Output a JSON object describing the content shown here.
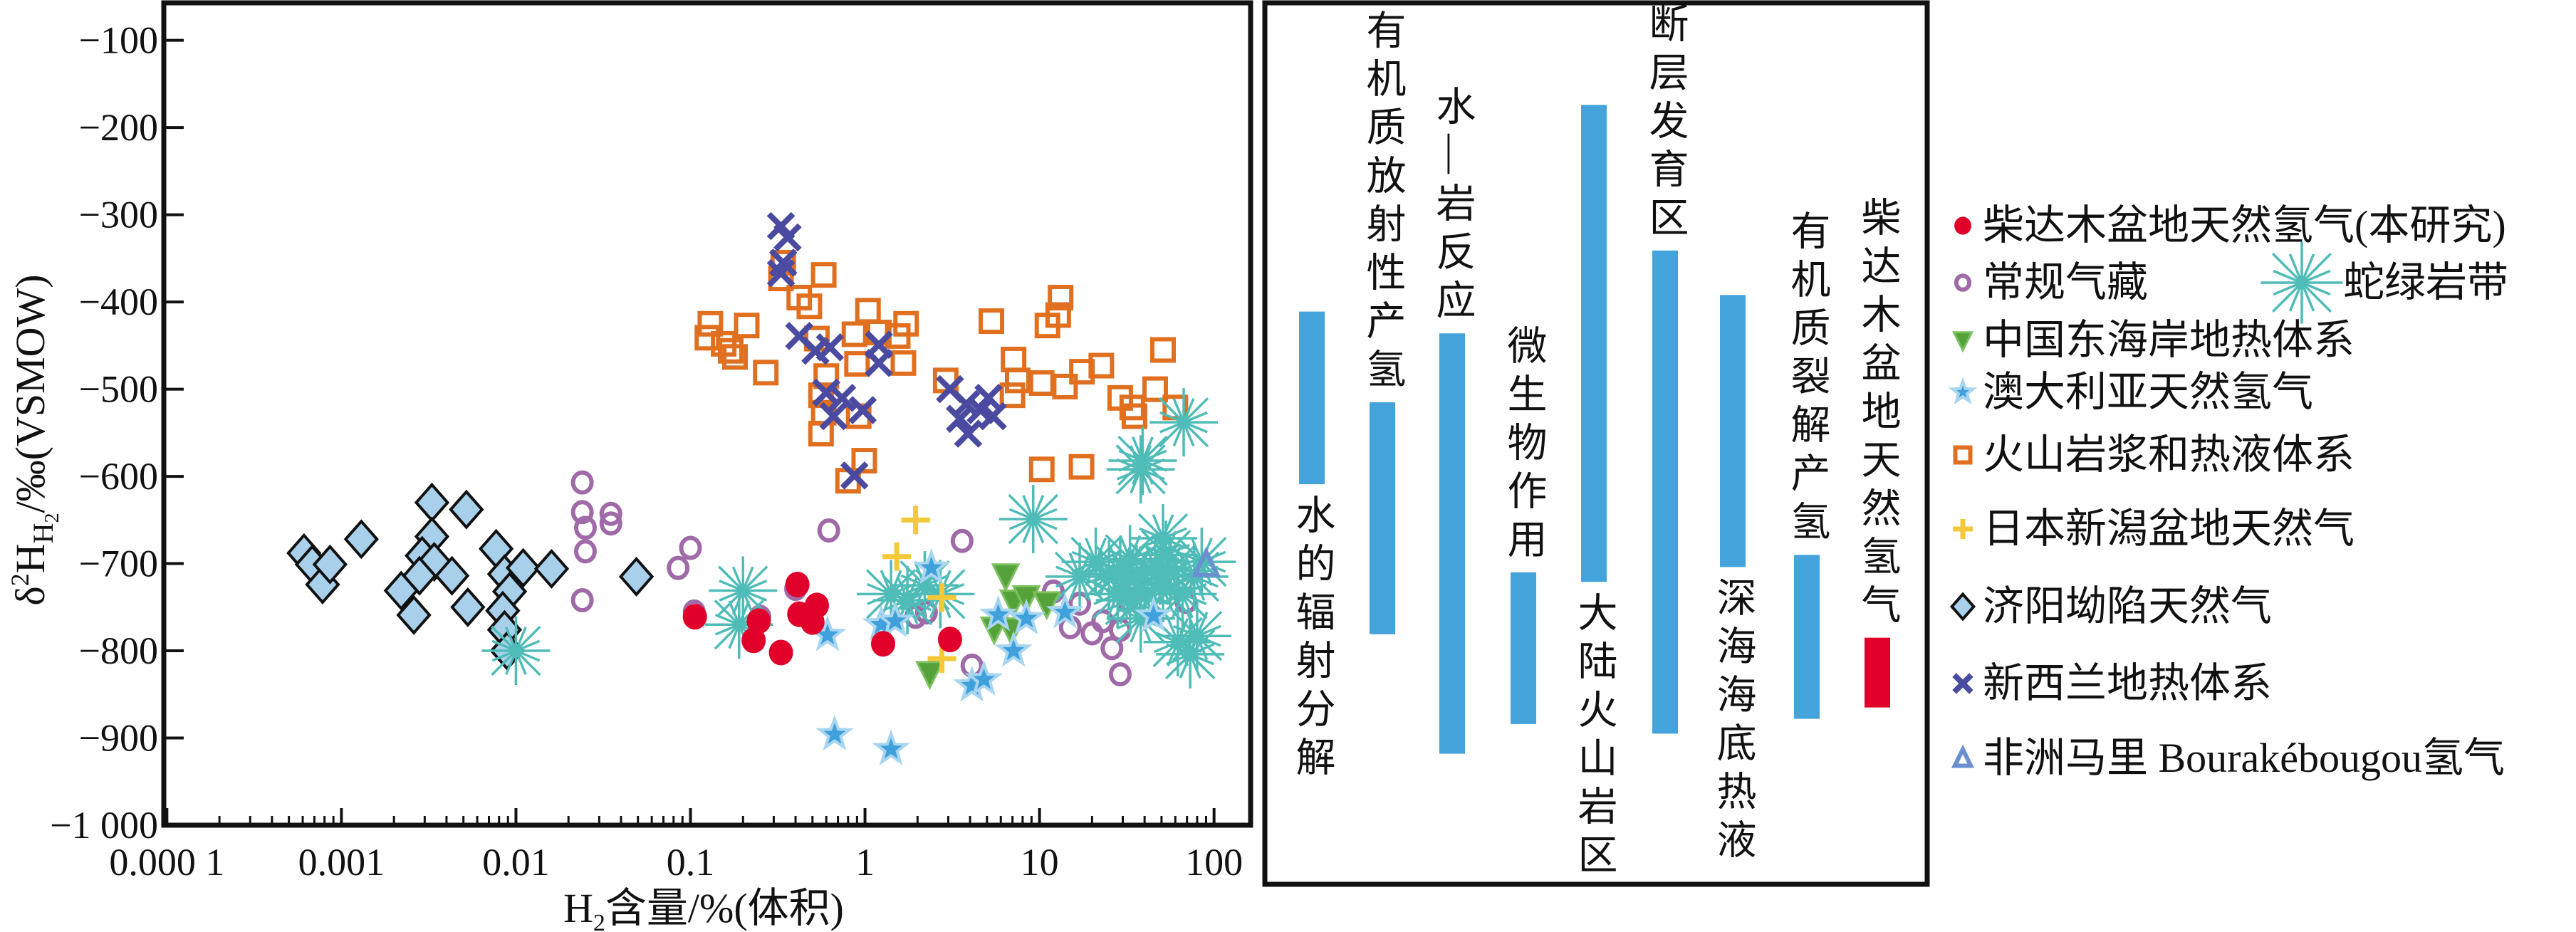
{
  "chart_data": [
    {
      "type": "scatter",
      "xscale": "log",
      "xlim": [
        9.6e-05,
        162
      ],
      "ylim": [
        -1000,
        -57
      ],
      "grid": false,
      "xlabel_parts": [
        "H",
        "2",
        "含量/%(体积)"
      ],
      "ylabel_parts": [
        "δ",
        "2",
        "H",
        "H",
        "2",
        "/‰(VSMOW)"
      ],
      "xticks": [
        0.0001,
        0.001,
        0.01,
        0.1,
        1,
        10,
        100
      ],
      "xtick_labels": [
        "0.000 1",
        "0.001",
        "0.01",
        "0.1",
        "1",
        "10",
        "100"
      ],
      "yticks": [
        -100,
        -200,
        -300,
        -400,
        -500,
        -600,
        -700,
        -800,
        -900,
        -1000
      ],
      "ytick_labels": [
        "−100",
        "−200",
        "−300",
        "−400",
        "−500",
        "−600",
        "−700",
        "−800",
        "−900",
        "−1 000"
      ],
      "legend_placement": "right",
      "series": [
        {
          "name": "常规气藏",
          "marker": "open-circle",
          "color": "#a06aa8",
          "points": [
            [
              0.024,
              -607
            ],
            [
              0.024,
              -641
            ],
            [
              0.025,
              -659
            ],
            [
              0.025,
              -686
            ],
            [
              0.024,
              -742
            ],
            [
              0.035,
              -643
            ],
            [
              0.035,
              -654
            ],
            [
              0.085,
              -705
            ],
            [
              0.1,
              -682
            ],
            [
              0.105,
              -755
            ],
            [
              0.25,
              -761
            ],
            [
              0.4,
              -729
            ],
            [
              0.62,
              -662
            ],
            [
              1.95,
              -761
            ],
            [
              2.25,
              -756
            ],
            [
              3.6,
              -674
            ],
            [
              4.1,
              -817
            ],
            [
              12,
              -732
            ],
            [
              15,
              -773
            ],
            [
              17,
              -746
            ],
            [
              20,
              -780
            ],
            [
              23,
              -766
            ],
            [
              26,
              -797
            ],
            [
              29,
              -827
            ],
            [
              29,
              -776
            ],
            [
              32,
              -742
            ],
            [
              69,
              -744
            ],
            [
              35,
              -720
            ]
          ]
        },
        {
          "name": "济阳坳陷天然气",
          "marker": "diamond",
          "color": "#a8d0ea",
          "points": [
            [
              0.00061,
              -688
            ],
            [
              0.00068,
              -701
            ],
            [
              0.00078,
              -724
            ],
            [
              0.00086,
              -701
            ],
            [
              0.0013,
              -672
            ],
            [
              0.0033,
              -630
            ],
            [
              0.0052,
              -638
            ],
            [
              0.0033,
              -669
            ],
            [
              0.0029,
              -691
            ],
            [
              0.0034,
              -698
            ],
            [
              0.0028,
              -714
            ],
            [
              0.0022,
              -731
            ],
            [
              0.0026,
              -759
            ],
            [
              0.0043,
              -714
            ],
            [
              0.0053,
              -750
            ],
            [
              0.0077,
              -683
            ],
            [
              0.0086,
              -712
            ],
            [
              0.011,
              -705
            ],
            [
              0.0092,
              -732
            ],
            [
              0.0084,
              -754
            ],
            [
              0.0086,
              -776
            ],
            [
              0.0089,
              -800
            ],
            [
              0.016,
              -706
            ],
            [
              0.049,
              -715
            ]
          ]
        },
        {
          "name": "火山岩浆和热液体系",
          "marker": "open-square",
          "color": "#e07020",
          "points": [
            [
              0.13,
              -425
            ],
            [
              0.125,
              -441
            ],
            [
              0.155,
              -448
            ],
            [
              0.17,
              -456
            ],
            [
              0.18,
              -463
            ],
            [
              0.21,
              -427
            ],
            [
              0.27,
              -481
            ],
            [
              0.34,
              -355
            ],
            [
              0.33,
              -373
            ],
            [
              0.58,
              -369
            ],
            [
              0.42,
              -395
            ],
            [
              0.48,
              -405
            ],
            [
              0.53,
              -442
            ],
            [
              0.6,
              -485
            ],
            [
              0.56,
              -507
            ],
            [
              0.58,
              -527
            ],
            [
              0.56,
              -551
            ],
            [
              0.99,
              -582
            ],
            [
              0.8,
              -605
            ],
            [
              0.92,
              -531
            ],
            [
              1.04,
              -410
            ],
            [
              0.87,
              -437
            ],
            [
              1.2,
              -435
            ],
            [
              1.54,
              -439
            ],
            [
              1.72,
              -425
            ],
            [
              1.66,
              -470
            ],
            [
              0.9,
              -471
            ],
            [
              2.9,
              -490
            ],
            [
              5.3,
              -422
            ],
            [
              7.1,
              -466
            ],
            [
              7.5,
              -490
            ],
            [
              7.0,
              -507
            ],
            [
              10.3,
              -493
            ],
            [
              11.1,
              -427
            ],
            [
              12.8,
              -415
            ],
            [
              13.2,
              -395
            ],
            [
              14,
              -497
            ],
            [
              17.5,
              -480
            ],
            [
              22.6,
              -473
            ],
            [
              29,
              -510
            ],
            [
              34,
              -521
            ],
            [
              35,
              -531
            ],
            [
              46,
              -500
            ],
            [
              51,
              -455
            ],
            [
              60,
              -521
            ],
            [
              10.3,
              -592
            ],
            [
              17.4,
              -589
            ]
          ]
        },
        {
          "name": "新西兰地热体系",
          "marker": "x",
          "color": "#4a4aa0",
          "points": [
            [
              0.33,
              -313
            ],
            [
              0.36,
              -326
            ],
            [
              0.33,
              -367
            ],
            [
              0.34,
              -355
            ],
            [
              0.42,
              -439
            ],
            [
              0.52,
              -456
            ],
            [
              0.63,
              -452
            ],
            [
              0.6,
              -504
            ],
            [
              0.66,
              -531
            ],
            [
              0.74,
              -510
            ],
            [
              0.97,
              -524
            ],
            [
              0.87,
              -599
            ],
            [
              1.2,
              -449
            ],
            [
              1.2,
              -470
            ],
            [
              3.07,
              -500
            ],
            [
              3.5,
              -534
            ],
            [
              3.9,
              -551
            ],
            [
              4.6,
              -524
            ],
            [
              5.1,
              -510
            ],
            [
              5.4,
              -531
            ],
            [
              3.8,
              -517
            ]
          ]
        },
        {
          "name": "蛇绿岩带",
          "marker": "asterisk",
          "color": "#4fbcb8",
          "points": [
            [
              0.01,
              -800
            ],
            [
              0.2,
              -731
            ],
            [
              0.19,
              -770
            ],
            [
              1.41,
              -735
            ],
            [
              1.75,
              -742
            ],
            [
              2.2,
              -725
            ],
            [
              2.7,
              -735
            ],
            [
              9.2,
              -649
            ],
            [
              38,
              -592
            ],
            [
              39,
              -582
            ],
            [
              67,
              -538
            ],
            [
              51,
              -671
            ],
            [
              21,
              -698
            ],
            [
              25,
              -712
            ],
            [
              29,
              -708
            ],
            [
              33,
              -695
            ],
            [
              36,
              -718
            ],
            [
              40,
              -735
            ],
            [
              46,
              -705
            ],
            [
              51,
              -728
            ],
            [
              56,
              -708
            ],
            [
              66,
              -735
            ],
            [
              77,
              -715
            ],
            [
              85,
              -698
            ],
            [
              33,
              -742
            ],
            [
              38,
              -763
            ],
            [
              28,
              -735
            ],
            [
              62,
              -790
            ],
            [
              73,
              -804
            ],
            [
              80,
              -783
            ],
            [
              17,
              -715
            ],
            [
              53,
              -690
            ]
          ]
        },
        {
          "name": "中国东海岸地热体系",
          "marker": "triangle-down",
          "color": "#55a23a",
          "points": [
            [
              6.4,
              -714
            ],
            [
              7.1,
              -744
            ],
            [
              8.4,
              -739
            ],
            [
              11,
              -746
            ],
            [
              5.5,
              -775
            ],
            [
              6.9,
              -776
            ],
            [
              2.35,
              -826
            ]
          ]
        },
        {
          "name": "澳大利亚天然氢气",
          "marker": "star",
          "color": "#3fa0dc",
          "points": [
            [
              0.61,
              -782
            ],
            [
              0.67,
              -896
            ],
            [
              1.41,
              -913
            ],
            [
              1.24,
              -770
            ],
            [
              1.49,
              -766
            ],
            [
              2.4,
              -705
            ],
            [
              4.1,
              -840
            ],
            [
              4.8,
              -833
            ],
            [
              5.8,
              -759
            ],
            [
              7.1,
              -800
            ],
            [
              8.4,
              -763
            ],
            [
              14,
              -756
            ],
            [
              45,
              -760
            ]
          ]
        },
        {
          "name": "日本新潟盆地天然气",
          "marker": "plus",
          "color": "#f5c83a",
          "points": [
            [
              1.95,
              -650
            ],
            [
              1.52,
              -692
            ],
            [
              2.76,
              -739
            ],
            [
              2.76,
              -809
            ]
          ]
        },
        {
          "name": "柴达木盆地天然氢气(本研究)",
          "marker": "filled-circle",
          "color": "#e0002a",
          "points": [
            [
              0.106,
              -761
            ],
            [
              0.246,
              -766
            ],
            [
              0.41,
              -724
            ],
            [
              0.42,
              -758
            ],
            [
              0.53,
              -748
            ],
            [
              0.5,
              -767
            ],
            [
              0.23,
              -788
            ],
            [
              0.33,
              -802
            ],
            [
              1.27,
              -792
            ],
            [
              3.07,
              -787
            ]
          ]
        },
        {
          "name": "非洲马里 Bourakébougou氢气",
          "marker": "triangle-up",
          "color": "#6a90d0",
          "points": [
            [
              90,
              -701
            ]
          ]
        }
      ]
    },
    {
      "type": "bar",
      "orientation": "vertical-range",
      "ylim": [
        -1000,
        -57
      ],
      "bar_color": "#45a3dc",
      "highlight_color": "#e0002a",
      "bars": [
        {
          "label": "水的辐射分解",
          "range": [
            -609,
            -411
          ],
          "label_side": "below",
          "highlight": false
        },
        {
          "label": "有机质放射性产氢",
          "range": [
            -781,
            -515
          ],
          "label_side": "above",
          "highlight": false
        },
        {
          "label": "水—岩反应",
          "range": [
            -918,
            -436
          ],
          "label_side": "above",
          "highlight": false
        },
        {
          "label": "微生物作用",
          "range": [
            -884,
            -710
          ],
          "label_side": "above",
          "highlight": false
        },
        {
          "label": "大陆火山岩区",
          "range": [
            -721,
            -174
          ],
          "label_side": "below",
          "highlight": false
        },
        {
          "label": "断层发育区",
          "range": [
            -895,
            -341
          ],
          "label_side": "above",
          "highlight": false
        },
        {
          "label": "深海海底热液",
          "range": [
            -704,
            -392
          ],
          "label_side": "below",
          "highlight": false
        },
        {
          "label": "有机质裂解产氢",
          "range": [
            -878,
            -690
          ],
          "label_side": "above",
          "highlight": false
        },
        {
          "label": "柴达木盆地天然氢气",
          "range": [
            -865,
            -785
          ],
          "label_side": "above",
          "highlight": true
        }
      ]
    }
  ],
  "legend": {
    "items": [
      {
        "label": "柴达木盆地天然氢气(本研究)",
        "marker": "filled-circle",
        "color": "#e0002a"
      },
      {
        "label": "常规气藏",
        "marker": "open-circle",
        "color": "#a06aa8"
      },
      {
        "label": "蛇绿岩带",
        "marker": "asterisk",
        "color": "#4fbcb8"
      },
      {
        "label": "中国东海岸地热体系",
        "marker": "triangle-down",
        "color": "#55a23a"
      },
      {
        "label": "澳大利亚天然氢气",
        "marker": "star",
        "color": "#3fa0dc"
      },
      {
        "label": "火山岩浆和热液体系",
        "marker": "open-square",
        "color": "#e07020"
      },
      {
        "label": "日本新潟盆地天然气",
        "marker": "plus",
        "color": "#f5c83a"
      },
      {
        "label": "济阳坳陷天然气",
        "marker": "diamond",
        "color": "#a8d0ea"
      },
      {
        "label": "新西兰地热体系",
        "marker": "x",
        "color": "#4a4aa0"
      },
      {
        "label": "非洲马里 Bourakébougou氢气",
        "marker": "triangle-up",
        "color": "#6a90d0"
      }
    ]
  }
}
